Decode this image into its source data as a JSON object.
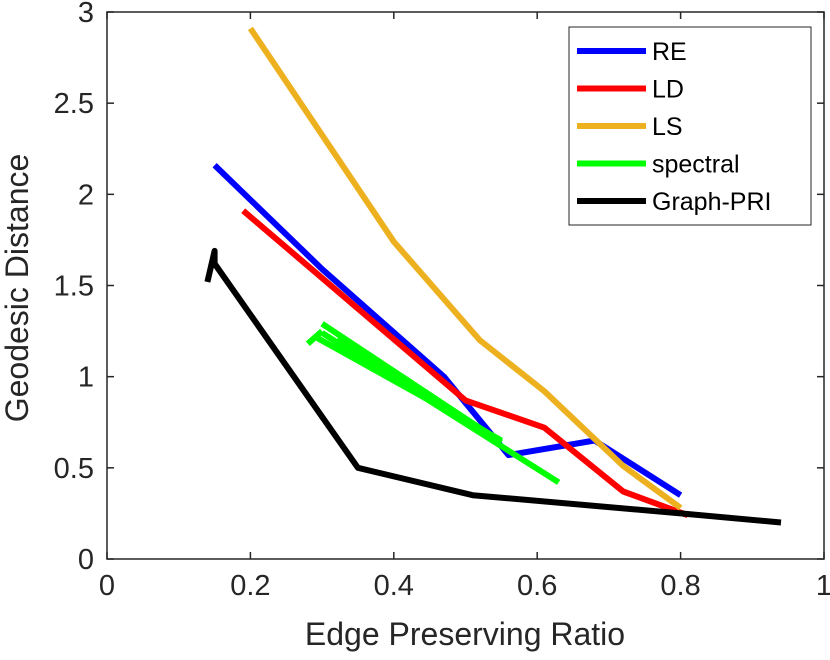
{
  "chart_data": {
    "type": "line",
    "title": "",
    "xlabel": "Edge Preserving Ratio",
    "ylabel": "Geodesic Distance",
    "xlim": [
      0,
      1
    ],
    "ylim": [
      0,
      3
    ],
    "xticks": [
      0,
      0.2,
      0.4,
      0.6,
      0.8,
      1
    ],
    "xtick_labels": [
      "0",
      "0.2",
      "0.4",
      "0.6",
      "0.8",
      "1"
    ],
    "yticks": [
      0,
      0.5,
      1,
      1.5,
      2,
      2.5,
      3
    ],
    "ytick_labels": [
      "0",
      "0.5",
      "1",
      "1.5",
      "2",
      "2.5",
      "3"
    ],
    "grid": false,
    "legend_position": "top-right",
    "series": [
      {
        "name": "RE",
        "color": "#0000ff",
        "x": [
          0.15,
          0.3,
          0.47,
          0.56,
          0.68,
          0.8
        ],
        "y": [
          2.16,
          1.59,
          1.0,
          0.57,
          0.65,
          0.35
        ]
      },
      {
        "name": "LD",
        "color": "#ff0000",
        "x": [
          0.19,
          0.5,
          0.61,
          0.72,
          0.81
        ],
        "y": [
          1.91,
          0.87,
          0.72,
          0.37,
          0.24
        ]
      },
      {
        "name": "LS",
        "color": "#edb120",
        "x": [
          0.2,
          0.4,
          0.52,
          0.61,
          0.72,
          0.8
        ],
        "y": [
          2.91,
          1.74,
          1.2,
          0.92,
          0.51,
          0.28
        ]
      },
      {
        "name": "spectral",
        "color": "#00ff00",
        "segments": [
          {
            "x": [
              0.3,
              0.55
            ],
            "y": [
              1.29,
              0.64
            ]
          },
          {
            "x": [
              0.29,
              0.55
            ],
            "y": [
              1.22,
              0.65
            ]
          },
          {
            "x": [
              0.3,
              0.63
            ],
            "y": [
              1.24,
              0.42
            ]
          },
          {
            "x": [
              0.32,
              0.54
            ],
            "y": [
              1.2,
              0.67
            ]
          },
          {
            "x": [
              0.28,
              0.3
            ],
            "y": [
              1.18,
              1.25
            ]
          }
        ]
      },
      {
        "name": "Graph-PRI",
        "color": "#000000",
        "x": [
          0.14,
          0.15,
          0.15,
          0.35,
          0.51,
          0.8,
          0.94
        ],
        "y": [
          1.52,
          1.69,
          1.62,
          0.5,
          0.35,
          0.25,
          0.2
        ]
      }
    ]
  }
}
